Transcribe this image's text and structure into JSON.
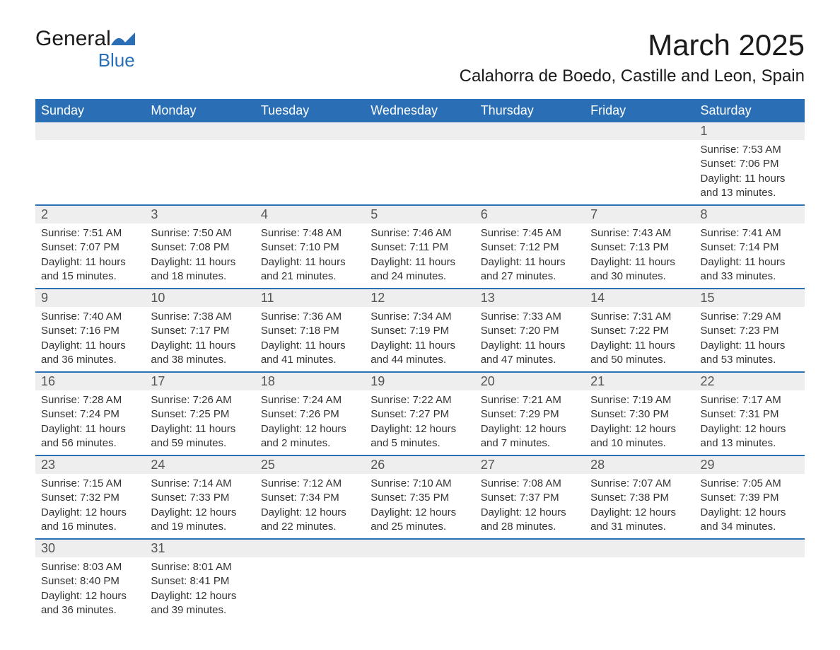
{
  "logo": {
    "text_general": "General",
    "text_blue": "Blue"
  },
  "title": "March 2025",
  "location": "Calahorra de Boedo, Castille and Leon, Spain",
  "colors": {
    "header_bg": "#2a6fb5",
    "header_text": "#ffffff",
    "daynum_bg": "#eeeeee",
    "row_border": "#2a6fb5",
    "body_text": "#333333",
    "logo_blue": "#2a6fb5"
  },
  "weekdays": [
    "Sunday",
    "Monday",
    "Tuesday",
    "Wednesday",
    "Thursday",
    "Friday",
    "Saturday"
  ],
  "labels": {
    "sunrise": "Sunrise:",
    "sunset": "Sunset:",
    "daylight": "Daylight:"
  },
  "first_weekday_index": 6,
  "days": [
    {
      "n": 1,
      "sunrise": "7:53 AM",
      "sunset": "7:06 PM",
      "daylight": "11 hours and 13 minutes."
    },
    {
      "n": 2,
      "sunrise": "7:51 AM",
      "sunset": "7:07 PM",
      "daylight": "11 hours and 15 minutes."
    },
    {
      "n": 3,
      "sunrise": "7:50 AM",
      "sunset": "7:08 PM",
      "daylight": "11 hours and 18 minutes."
    },
    {
      "n": 4,
      "sunrise": "7:48 AM",
      "sunset": "7:10 PM",
      "daylight": "11 hours and 21 minutes."
    },
    {
      "n": 5,
      "sunrise": "7:46 AM",
      "sunset": "7:11 PM",
      "daylight": "11 hours and 24 minutes."
    },
    {
      "n": 6,
      "sunrise": "7:45 AM",
      "sunset": "7:12 PM",
      "daylight": "11 hours and 27 minutes."
    },
    {
      "n": 7,
      "sunrise": "7:43 AM",
      "sunset": "7:13 PM",
      "daylight": "11 hours and 30 minutes."
    },
    {
      "n": 8,
      "sunrise": "7:41 AM",
      "sunset": "7:14 PM",
      "daylight": "11 hours and 33 minutes."
    },
    {
      "n": 9,
      "sunrise": "7:40 AM",
      "sunset": "7:16 PM",
      "daylight": "11 hours and 36 minutes."
    },
    {
      "n": 10,
      "sunrise": "7:38 AM",
      "sunset": "7:17 PM",
      "daylight": "11 hours and 38 minutes."
    },
    {
      "n": 11,
      "sunrise": "7:36 AM",
      "sunset": "7:18 PM",
      "daylight": "11 hours and 41 minutes."
    },
    {
      "n": 12,
      "sunrise": "7:34 AM",
      "sunset": "7:19 PM",
      "daylight": "11 hours and 44 minutes."
    },
    {
      "n": 13,
      "sunrise": "7:33 AM",
      "sunset": "7:20 PM",
      "daylight": "11 hours and 47 minutes."
    },
    {
      "n": 14,
      "sunrise": "7:31 AM",
      "sunset": "7:22 PM",
      "daylight": "11 hours and 50 minutes."
    },
    {
      "n": 15,
      "sunrise": "7:29 AM",
      "sunset": "7:23 PM",
      "daylight": "11 hours and 53 minutes."
    },
    {
      "n": 16,
      "sunrise": "7:28 AM",
      "sunset": "7:24 PM",
      "daylight": "11 hours and 56 minutes."
    },
    {
      "n": 17,
      "sunrise": "7:26 AM",
      "sunset": "7:25 PM",
      "daylight": "11 hours and 59 minutes."
    },
    {
      "n": 18,
      "sunrise": "7:24 AM",
      "sunset": "7:26 PM",
      "daylight": "12 hours and 2 minutes."
    },
    {
      "n": 19,
      "sunrise": "7:22 AM",
      "sunset": "7:27 PM",
      "daylight": "12 hours and 5 minutes."
    },
    {
      "n": 20,
      "sunrise": "7:21 AM",
      "sunset": "7:29 PM",
      "daylight": "12 hours and 7 minutes."
    },
    {
      "n": 21,
      "sunrise": "7:19 AM",
      "sunset": "7:30 PM",
      "daylight": "12 hours and 10 minutes."
    },
    {
      "n": 22,
      "sunrise": "7:17 AM",
      "sunset": "7:31 PM",
      "daylight": "12 hours and 13 minutes."
    },
    {
      "n": 23,
      "sunrise": "7:15 AM",
      "sunset": "7:32 PM",
      "daylight": "12 hours and 16 minutes."
    },
    {
      "n": 24,
      "sunrise": "7:14 AM",
      "sunset": "7:33 PM",
      "daylight": "12 hours and 19 minutes."
    },
    {
      "n": 25,
      "sunrise": "7:12 AM",
      "sunset": "7:34 PM",
      "daylight": "12 hours and 22 minutes."
    },
    {
      "n": 26,
      "sunrise": "7:10 AM",
      "sunset": "7:35 PM",
      "daylight": "12 hours and 25 minutes."
    },
    {
      "n": 27,
      "sunrise": "7:08 AM",
      "sunset": "7:37 PM",
      "daylight": "12 hours and 28 minutes."
    },
    {
      "n": 28,
      "sunrise": "7:07 AM",
      "sunset": "7:38 PM",
      "daylight": "12 hours and 31 minutes."
    },
    {
      "n": 29,
      "sunrise": "7:05 AM",
      "sunset": "7:39 PM",
      "daylight": "12 hours and 34 minutes."
    },
    {
      "n": 30,
      "sunrise": "8:03 AM",
      "sunset": "8:40 PM",
      "daylight": "12 hours and 36 minutes."
    },
    {
      "n": 31,
      "sunrise": "8:01 AM",
      "sunset": "8:41 PM",
      "daylight": "12 hours and 39 minutes."
    }
  ]
}
